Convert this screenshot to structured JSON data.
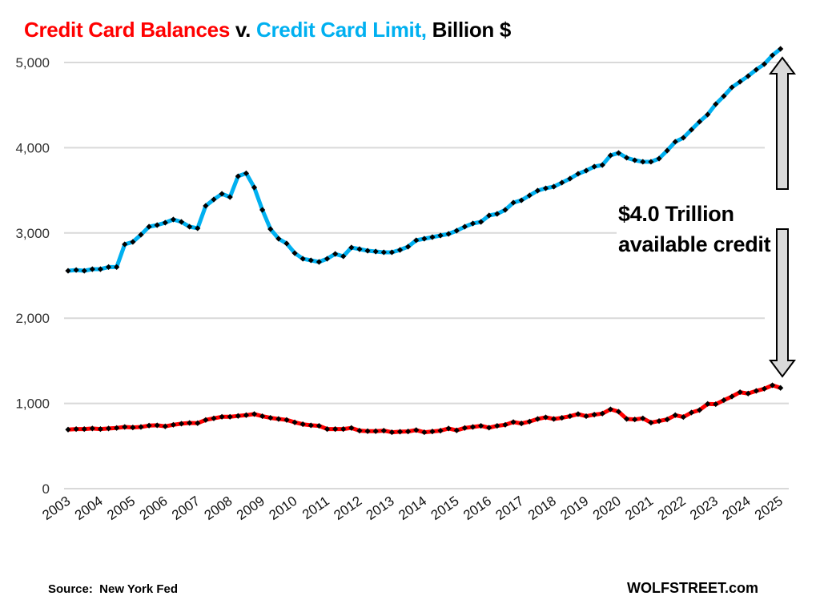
{
  "chart_data": {
    "type": "line",
    "title": {
      "part1": "Credit Card Balances",
      "part2": " v. ",
      "part3": "Credit Card Limit,",
      "part4": " Billion $"
    },
    "x_start": "2003 Q1",
    "x_frequency": "quarterly",
    "x_tick_labels": [
      "2003",
      "2004",
      "2005",
      "2006",
      "2007",
      "2008",
      "2009",
      "2010",
      "2011",
      "2012",
      "2013",
      "2014",
      "2015",
      "2016",
      "2017",
      "2018",
      "2019",
      "2020",
      "2021",
      "2022",
      "2023",
      "2024",
      "2025"
    ],
    "y_tick_labels": [
      "0",
      "1,000",
      "2,000",
      "3,000",
      "4,000",
      "5,000"
    ],
    "y_ticks": [
      0,
      1000,
      2000,
      3000,
      4000,
      5000
    ],
    "ylim": [
      0,
      5300
    ],
    "grid": true,
    "series": [
      {
        "name": "Credit Card Limit",
        "color": "#00b0f0",
        "marker": "diamond",
        "values": [
          2556,
          2565,
          2556,
          2575,
          2575,
          2600,
          2600,
          2867,
          2895,
          2979,
          3073,
          3092,
          3120,
          3158,
          3130,
          3073,
          3055,
          3318,
          3393,
          3459,
          3421,
          3665,
          3700,
          3534,
          3271,
          3045,
          2932,
          2876,
          2763,
          2697,
          2679,
          2660,
          2697,
          2754,
          2726,
          2829,
          2810,
          2791,
          2782,
          2773,
          2773,
          2801,
          2838,
          2914,
          2932,
          2951,
          2970,
          2989,
          3026,
          3073,
          3111,
          3130,
          3205,
          3224,
          3271,
          3355,
          3383,
          3440,
          3496,
          3524,
          3543,
          3590,
          3637,
          3694,
          3731,
          3778,
          3797,
          3910,
          3938,
          3882,
          3853,
          3835,
          3835,
          3872,
          3966,
          4070,
          4117,
          4211,
          4305,
          4389,
          4511,
          4605,
          4709,
          4774,
          4840,
          4915,
          4981,
          5084,
          5160
        ]
      },
      {
        "name": "Credit Card Balances",
        "color": "#ff0000",
        "marker": "diamond",
        "values": [
          693,
          699,
          699,
          706,
          699,
          706,
          712,
          724,
          718,
          724,
          740,
          743,
          731,
          749,
          762,
          771,
          768,
          806,
          825,
          843,
          843,
          853,
          862,
          875,
          850,
          831,
          818,
          806,
          778,
          756,
          743,
          737,
          699,
          699,
          699,
          712,
          680,
          674,
          674,
          680,
          662,
          668,
          671,
          687,
          662,
          671,
          680,
          706,
          684,
          712,
          724,
          737,
          715,
          737,
          749,
          781,
          765,
          787,
          818,
          837,
          818,
          831,
          850,
          875,
          850,
          868,
          881,
          931,
          903,
          818,
          812,
          825,
          774,
          793,
          812,
          862,
          840,
          893,
          922,
          994,
          991,
          1038,
          1081,
          1132,
          1116,
          1147,
          1172,
          1213,
          1182
        ]
      }
    ],
    "annotation": {
      "line1": "$4.0 Trillion",
      "line2": "available credit",
      "arrow_color": "#d9d9d9"
    },
    "source": "Source:  New York Fed",
    "brand": "WOLFSTREET.com"
  }
}
